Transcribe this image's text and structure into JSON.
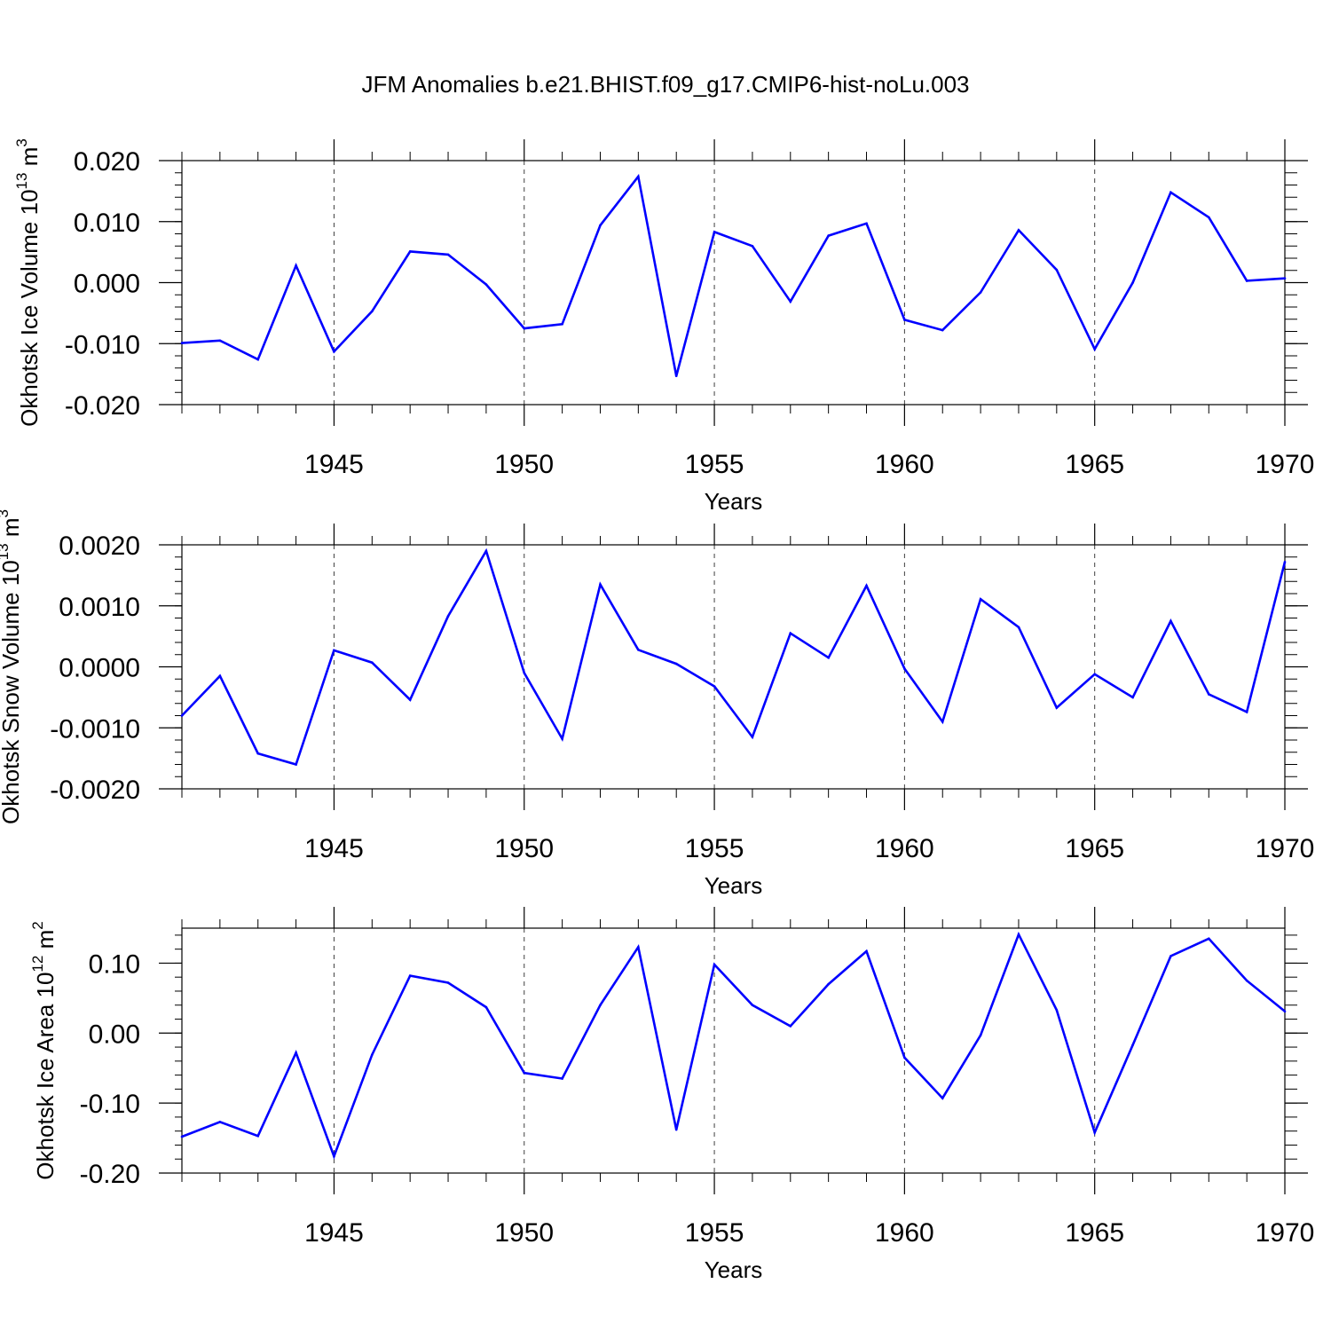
{
  "title": "JFM Anomalies b.e21.BHIST.f09_g17.CMIP6-hist-noLu.003",
  "colors": {
    "line": "#0000ff",
    "axis": "#000000",
    "grid": "#000000"
  },
  "chart_data": [
    {
      "type": "line",
      "ylabel": "Okhotsk Ice Volume 10",
      "ylabel_exp": "13",
      "ylabel_unit": "m",
      "ylabel_unit_exp": "3",
      "xlabel": "Years",
      "xlim": [
        1941,
        1970
      ],
      "ylim": [
        -0.02,
        0.02
      ],
      "yticks": [
        -0.02,
        -0.01,
        0.0,
        0.01,
        0.02
      ],
      "yticklabels": [
        "-0.020",
        "-0.010",
        "0.000",
        "0.010",
        "0.020"
      ],
      "xticks": [
        1945,
        1950,
        1955,
        1960,
        1965,
        1970
      ],
      "xticklabels": [
        "1945",
        "1950",
        "1955",
        "1960",
        "1965",
        "1970"
      ],
      "x": [
        1941,
        1942,
        1943,
        1944,
        1945,
        1946,
        1947,
        1948,
        1949,
        1950,
        1951,
        1952,
        1953,
        1954,
        1955,
        1956,
        1957,
        1958,
        1959,
        1960,
        1961,
        1962,
        1963,
        1964,
        1965,
        1966,
        1967,
        1968,
        1969,
        1970
      ],
      "values": [
        -0.0099,
        -0.0095,
        -0.0126,
        0.0028,
        -0.0113,
        -0.0047,
        0.0051,
        0.0046,
        -0.0003,
        -0.0075,
        -0.0068,
        0.0094,
        0.0174,
        -0.0153,
        0.0083,
        0.006,
        -0.0031,
        0.0077,
        0.0097,
        -0.0061,
        -0.0078,
        -0.0016,
        0.0086,
        0.0021,
        -0.0109,
        0.0,
        0.0148,
        0.0107,
        0.0003,
        0.0007
      ]
    },
    {
      "type": "line",
      "ylabel": "Okhotsk Snow Volume 10",
      "ylabel_exp": "13",
      "ylabel_unit": "m",
      "ylabel_unit_exp": "3",
      "xlabel": "Years",
      "xlim": [
        1941,
        1970
      ],
      "ylim": [
        -0.002,
        0.002
      ],
      "yticks": [
        -0.002,
        -0.001,
        0.0,
        0.001,
        0.002
      ],
      "yticklabels": [
        "-0.0020",
        "-0.0010",
        "0.0000",
        "0.0010",
        "0.0020"
      ],
      "xticks": [
        1945,
        1950,
        1955,
        1960,
        1965,
        1970
      ],
      "xticklabels": [
        "1945",
        "1950",
        "1955",
        "1960",
        "1965",
        "1970"
      ],
      "x": [
        1941,
        1942,
        1943,
        1944,
        1945,
        1946,
        1947,
        1948,
        1949,
        1950,
        1951,
        1952,
        1953,
        1954,
        1955,
        1956,
        1957,
        1958,
        1959,
        1960,
        1961,
        1962,
        1963,
        1964,
        1965,
        1966,
        1967,
        1968,
        1969,
        1970
      ],
      "values": [
        -0.0008,
        -0.00015,
        -0.00142,
        -0.0016,
        0.00027,
        7e-05,
        -0.00054,
        0.00083,
        0.0019,
        -0.0001,
        -0.00118,
        0.00135,
        0.00028,
        5e-05,
        -0.00032,
        -0.00115,
        0.00055,
        0.00015,
        0.00133,
        -3e-05,
        -0.0009,
        0.00111,
        0.00065,
        -0.00067,
        -0.00012,
        -0.0005,
        0.00075,
        -0.00045,
        -0.00074,
        0.00172
      ]
    },
    {
      "type": "line",
      "ylabel": "Okhotsk Ice Area 10",
      "ylabel_exp": "12",
      "ylabel_unit": "m",
      "ylabel_unit_exp": "2",
      "xlabel": "Years",
      "xlim": [
        1941,
        1970
      ],
      "ylim": [
        -0.2,
        0.15
      ],
      "yticks": [
        -0.2,
        -0.1,
        0.0,
        0.1
      ],
      "yticklabels": [
        "-0.20",
        "-0.10",
        "0.00",
        "0.10"
      ],
      "xticks": [
        1945,
        1950,
        1955,
        1960,
        1965,
        1970
      ],
      "xticklabels": [
        "1945",
        "1950",
        "1955",
        "1960",
        "1965",
        "1970"
      ],
      "x": [
        1941,
        1942,
        1943,
        1944,
        1945,
        1946,
        1947,
        1948,
        1949,
        1950,
        1951,
        1952,
        1953,
        1954,
        1955,
        1956,
        1957,
        1958,
        1959,
        1960,
        1961,
        1962,
        1963,
        1964,
        1965,
        1966,
        1967,
        1968,
        1969,
        1970
      ],
      "values": [
        -0.148,
        -0.127,
        -0.147,
        -0.028,
        -0.176,
        -0.031,
        0.082,
        0.072,
        0.037,
        -0.057,
        -0.065,
        0.04,
        0.123,
        -0.138,
        0.098,
        0.04,
        0.01,
        0.07,
        0.117,
        -0.035,
        -0.093,
        -0.003,
        0.141,
        0.033,
        -0.142,
        -0.017,
        0.11,
        0.135,
        0.075,
        0.031
      ]
    }
  ]
}
